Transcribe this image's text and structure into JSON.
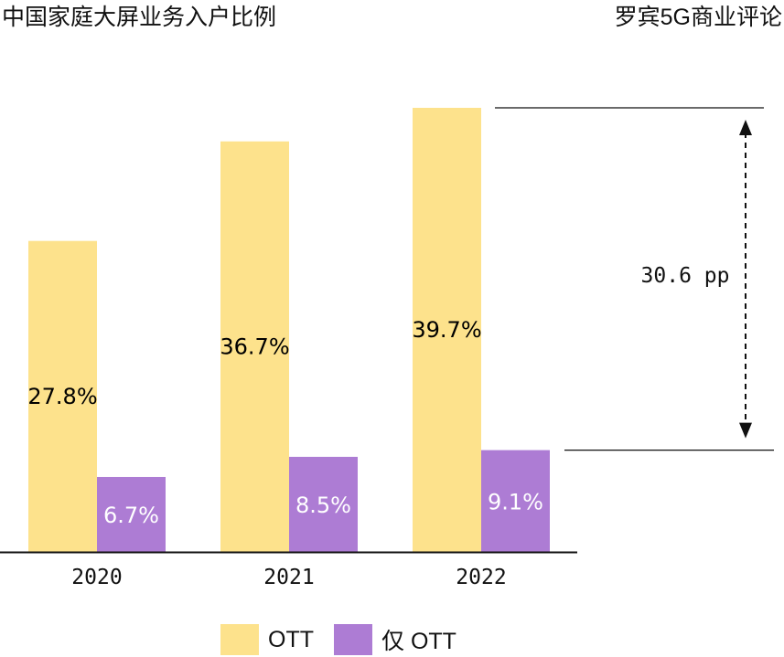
{
  "header": {
    "title": "中国家庭大屏业务入户比例",
    "brand": "罗宾5G商业评论"
  },
  "colors": {
    "ott": "#fde28c",
    "ott_only": "#ad7cd4",
    "axis": "#111111"
  },
  "chart_data": {
    "type": "bar",
    "title": "中国家庭大屏业务入户比例",
    "categories": [
      "2020",
      "2021",
      "2022"
    ],
    "series": [
      {
        "name": "OTT",
        "values": [
          27.8,
          36.7,
          39.7
        ],
        "labels": [
          "27.8%",
          "36.7%",
          "39.7%"
        ]
      },
      {
        "name": "仅 OTT",
        "values": [
          6.7,
          8.5,
          9.1
        ],
        "labels": [
          "6.7%",
          "8.5%",
          "9.1%"
        ]
      }
    ],
    "ylim": [
      0,
      39.7
    ],
    "grid": false,
    "legend": "bottom",
    "annotation": {
      "text": "30.6 pp",
      "from": 9.1,
      "to": 39.7
    }
  },
  "legend": {
    "items": [
      "OTT",
      "仅 OTT"
    ]
  }
}
